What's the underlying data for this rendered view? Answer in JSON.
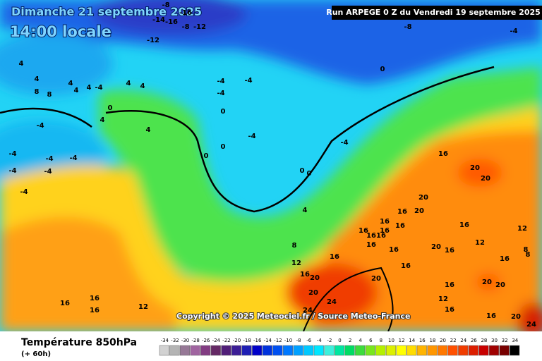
{
  "header": {
    "date": "Dimanche 21 septembre 2025",
    "time": "14:00 locale",
    "run": "Run ARPEGE 0 Z du Vendredi 19 septembre 2025"
  },
  "copyright": "Copyright © 2025 Meteociel.fr / Source Meteo-France",
  "footer": {
    "title": "Température 850hPa",
    "lead": "(+ 60h)"
  },
  "colorbar": {
    "ticks": [
      -34,
      -32,
      -30,
      -28,
      -26,
      -24,
      -22,
      -20,
      -18,
      -16,
      -14,
      -12,
      -10,
      -8,
      -6,
      -4,
      -2,
      0,
      2,
      4,
      6,
      8,
      10,
      12,
      14,
      16,
      18,
      20,
      22,
      24,
      26,
      28,
      30,
      32,
      34
    ],
    "colors": [
      "#d2d2d2",
      "#b4b4b4",
      "#967896",
      "#a064a0",
      "#823c82",
      "#642864",
      "#501e78",
      "#3c1e96",
      "#1e1eb4",
      "#0000c8",
      "#0032dc",
      "#0050f0",
      "#0078ff",
      "#00a0ff",
      "#00c8ff",
      "#00e6ff",
      "#3cf0dc",
      "#00e6a0",
      "#00dc64",
      "#3cdc3c",
      "#78e61e",
      "#b4f000",
      "#dcf000",
      "#ffff00",
      "#ffdc00",
      "#ffb400",
      "#ff9600",
      "#ff7800",
      "#ff5000",
      "#f03c00",
      "#dc1e00",
      "#c80000",
      "#a00000",
      "#780000",
      "#000000"
    ]
  },
  "map_labels": [
    "-8",
    "-16",
    "-14",
    "-16",
    "-8",
    "-12",
    "-12",
    "-8",
    "-4",
    "4",
    "4",
    "8",
    "8",
    "4",
    "4",
    "-4",
    "4",
    "4",
    "4",
    "0",
    "4",
    "-4",
    "-4",
    "-4",
    "0",
    "-4",
    "4",
    "0",
    "0",
    "-4",
    "-4",
    "-4",
    "-4",
    "-4",
    "-4",
    "-4",
    "0",
    "-4",
    "0",
    "0",
    "16",
    "20",
    "20",
    "20",
    "20",
    "16",
    "16",
    "16",
    "16",
    "1616",
    "16",
    "16",
    "16",
    "16",
    "12",
    "12",
    "8",
    "8",
    "16",
    "20",
    "16",
    "16",
    "4",
    "8",
    "12",
    "16",
    "16",
    "20",
    "20",
    "20",
    "24",
    "24",
    "20",
    "20",
    "16",
    "12",
    "16",
    "16",
    "20",
    "24",
    "16",
    "16",
    "12",
    "16"
  ]
}
